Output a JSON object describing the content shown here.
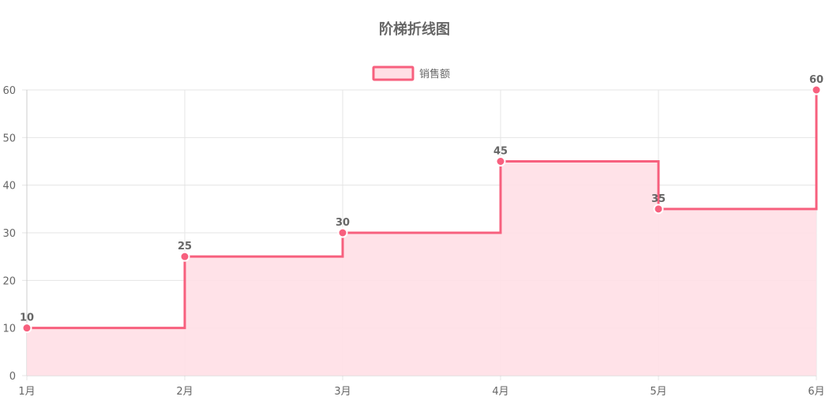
{
  "chart_data": {
    "type": "line",
    "stepped": "before",
    "title": "阶梯折线图",
    "categories": [
      "1月",
      "2月",
      "3月",
      "4月",
      "5月",
      "6月"
    ],
    "series": [
      {
        "name": "销售额",
        "values": [
          10,
          25,
          30,
          45,
          35,
          60
        ]
      }
    ],
    "ylim": [
      0,
      60
    ],
    "yticks": [
      0,
      10,
      20,
      30,
      40,
      50,
      60
    ],
    "grid": true,
    "legend_position": "top-center",
    "data_labels": true,
    "fill": true
  },
  "colors": {
    "line": "#f7607e",
    "fill": "#ffdfe5",
    "point_border": "#ffffff",
    "text": "#666666",
    "grid": "#e5e5e5"
  }
}
